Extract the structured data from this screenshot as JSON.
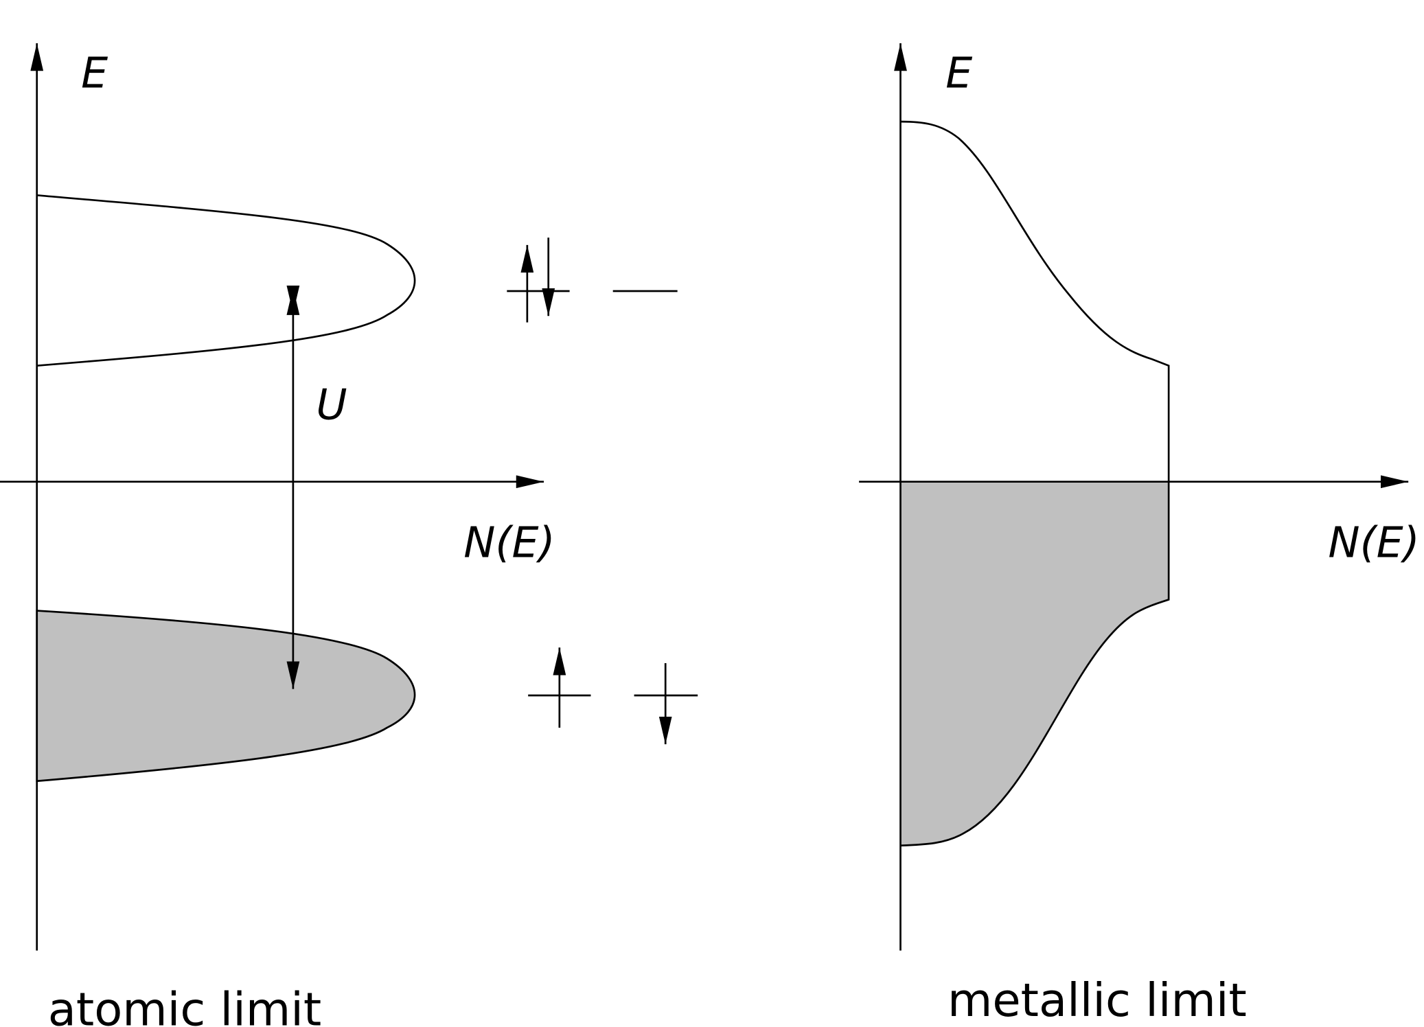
{
  "left_panel": {
    "y_axis_label": "E",
    "x_axis_label": "N(E)",
    "gap_label": "U",
    "caption": "atomic limit"
  },
  "right_panel": {
    "y_axis_label": "E",
    "x_axis_label": "N(E)",
    "caption": "metallic limit"
  },
  "colors": {
    "filled": "#c0c0c0",
    "line": "#000000"
  }
}
